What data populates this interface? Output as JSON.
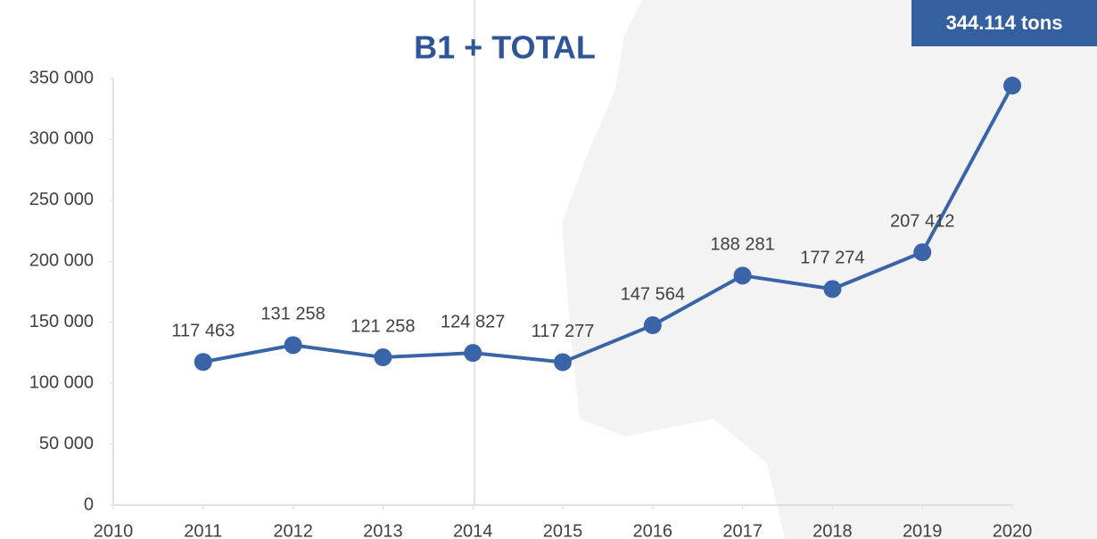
{
  "chart_data": {
    "type": "line",
    "title": "B1 + TOTAL",
    "annotation": "344.114 tons",
    "x": [
      2011,
      2012,
      2013,
      2014,
      2015,
      2016,
      2017,
      2018,
      2019,
      2020
    ],
    "series": [
      {
        "name": "B1 + TOTAL",
        "color": "#3a64a8",
        "values": [
          117463,
          131258,
          121258,
          124827,
          117277,
          147564,
          188281,
          177274,
          207412,
          344114
        ],
        "value_labels": [
          "117 463",
          "131 258",
          "121 258",
          "124 827",
          "117 277",
          "147 564",
          "188 281",
          "177 274",
          "207 412",
          null
        ]
      }
    ],
    "xlim": [
      2010,
      2020
    ],
    "xticks": [
      2010,
      2011,
      2012,
      2013,
      2014,
      2015,
      2016,
      2017,
      2018,
      2019,
      2020
    ],
    "ylim": [
      0,
      350000
    ],
    "yticks": [
      0,
      {
        "value": 50000,
        "label": "50 000"
      },
      {
        "value": 100000,
        "label": "100 000"
      },
      {
        "value": 150000,
        "label": "150 000"
      },
      {
        "value": 200000,
        "label": "200 000"
      },
      {
        "value": 250000,
        "label": "250 000"
      },
      {
        "value": 300000,
        "label": "300 000"
      },
      {
        "value": 350000,
        "label": "350 000"
      }
    ]
  }
}
